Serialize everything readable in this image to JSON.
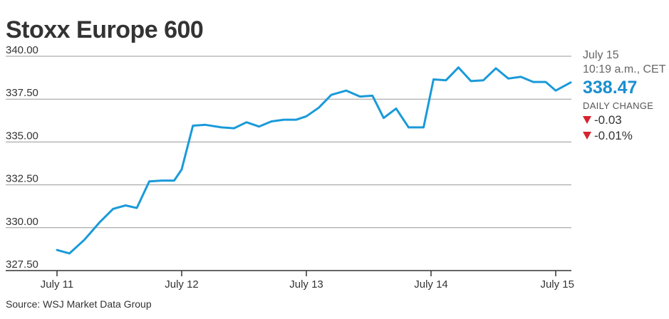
{
  "title": "Stoxx Europe 600",
  "source": "Source: WSJ Market Data Group",
  "colors": {
    "line": "#1a9ad9",
    "grid": "#999999",
    "axis": "#333333",
    "value": "#1a8fd0",
    "down": "#d6232f"
  },
  "side": {
    "date": "July 15",
    "time": "10:19 a.m., CET",
    "value": "338.47",
    "change_label": "DAILY CHANGE",
    "change_abs": "-0.03",
    "change_pct": "-0.01%",
    "direction_icon": "down-triangle-icon"
  },
  "chart_data": {
    "type": "line",
    "title": "Stoxx Europe 600",
    "xlabel": "",
    "ylabel": "",
    "ylim": [
      327.5,
      340.0
    ],
    "yticks": [
      "340.00",
      "337.50",
      "335.00",
      "332.50",
      "330.00",
      "327.50"
    ],
    "ytick_values": [
      340.0,
      337.5,
      335.0,
      332.5,
      330.0,
      327.5
    ],
    "xticks": [
      "July 11",
      "July 12",
      "July 13",
      "July 14",
      "July 15"
    ],
    "grid": true,
    "series": [
      {
        "values": [
          328.7,
          328.5,
          329.3,
          330.3,
          331.1,
          331.3,
          331.15,
          332.7,
          332.75,
          332.75,
          333.4,
          335.95,
          336.0,
          335.85,
          335.8,
          336.15,
          335.9,
          336.2,
          336.3,
          336.3,
          336.5,
          337.0,
          337.75,
          338.0,
          337.65,
          337.7,
          336.4,
          336.95,
          335.85,
          335.85,
          338.65,
          338.6,
          339.35,
          338.55,
          338.6,
          339.3,
          338.7,
          338.8,
          338.5,
          338.5,
          338.0,
          338.47
        ]
      }
    ],
    "x_day_fractions": [
      0.0,
      0.1,
      0.22,
      0.34,
      0.45,
      0.55,
      0.64,
      0.74,
      0.84,
      0.94,
      1.0,
      1.09,
      1.19,
      1.32,
      1.42,
      1.52,
      1.62,
      1.72,
      1.82,
      1.92,
      2.0,
      2.1,
      2.2,
      2.32,
      2.43,
      2.53,
      2.62,
      2.72,
      2.82,
      2.94,
      3.02,
      3.12,
      3.22,
      3.32,
      3.42,
      3.52,
      3.62,
      3.72,
      3.82,
      3.92,
      4.0,
      4.12
    ]
  }
}
